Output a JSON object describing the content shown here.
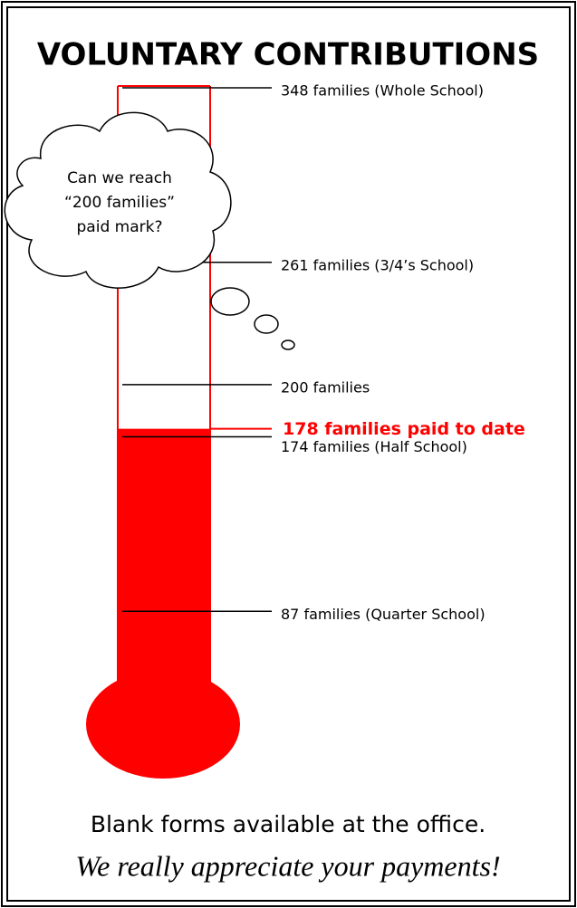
{
  "title": "VOLUNTARY CONTRIBUTIONS",
  "markers": [
    {
      "value": 348,
      "label": "348 families (Whole School)"
    },
    {
      "value": 261,
      "label": "261 families (3/4’s School)"
    },
    {
      "value": 200,
      "label": "200 families"
    },
    {
      "value": 174,
      "label": "174 families (Half School)"
    },
    {
      "value": 87,
      "label": "87 families (Quarter School)"
    }
  ],
  "paid": {
    "value": 178,
    "label": "178 families paid to date",
    "color": "#ff0000"
  },
  "cloud": [
    "Can we reach",
    "“200 families”",
    "paid mark?"
  ],
  "footer": [
    "Blank forms available at the office.",
    "We really appreciate your payments!"
  ]
}
